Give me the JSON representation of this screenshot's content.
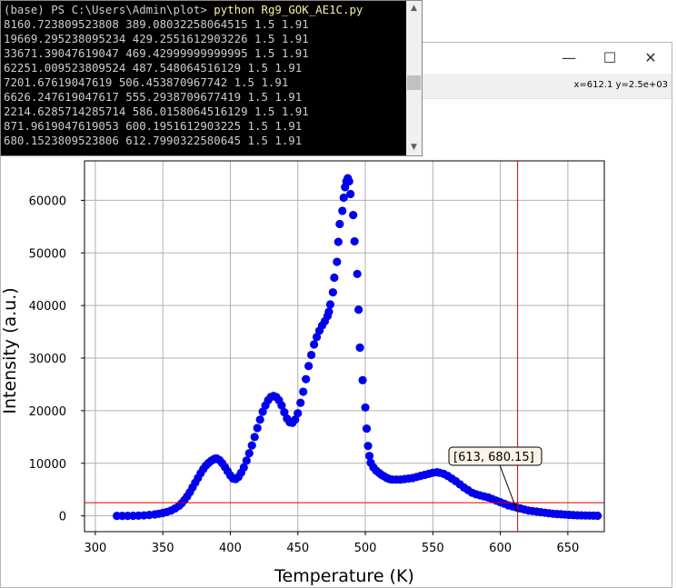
{
  "console": {
    "prompt": "(base) PS C:\\Users\\Admin\\plot> ",
    "command": "python Rg9_GOK_AE1C.py",
    "lines": [
      "8160.723809523808 389.08032258064515 1.5 1.91",
      "19669.295238095234 429.2551612903226 1.5 1.91",
      "33671.39047619047 469.42999999999995 1.5 1.91",
      "62251.009523809524 487.548064516129 1.5 1.91",
      "7201.67619047619 506.453870967742 1.5 1.91",
      "6626.247619047617 555.2938709677419 1.5 1.91",
      "2214.6285714285714 586.0158064516129 1.5 1.91",
      "871.9619047619053 600.1951612903225 1.5 1.91",
      "680.1523809523806 612.7990322580645 1.5 1.91"
    ],
    "scroll_up_icon": "chevron-up-icon",
    "scroll_down_icon": "chevron-down-icon"
  },
  "figure_window": {
    "minimize_glyph": "—",
    "maximize_glyph": "☐",
    "close_glyph": "✕",
    "coordinates": "x=612.1 y=2.5e+03"
  },
  "chart_data": {
    "type": "scatter",
    "xlabel": "Temperature (K)",
    "ylabel": "Intensity  (a.u.)",
    "xlim": [
      292,
      677
    ],
    "ylim": [
      -3000,
      67500
    ],
    "xticks": [
      300,
      350,
      400,
      450,
      500,
      550,
      600,
      650
    ],
    "yticks": [
      0,
      10000,
      20000,
      30000,
      40000,
      50000,
      60000
    ],
    "grid": true,
    "marker_color": "#0000ee",
    "cursor_color": "#dd0000",
    "cursor": {
      "x": 612.8,
      "y": 2500
    },
    "annotation": {
      "text": "[613, 680.15]",
      "x": 612.8,
      "y": 680.15
    },
    "points": [
      [
        316,
        0
      ],
      [
        320,
        0
      ],
      [
        324,
        0
      ],
      [
        328,
        20
      ],
      [
        332,
        50
      ],
      [
        336,
        100
      ],
      [
        340,
        180
      ],
      [
        344,
        280
      ],
      [
        347,
        400
      ],
      [
        350,
        550
      ],
      [
        353,
        750
      ],
      [
        356,
        1000
      ],
      [
        359,
        1400
      ],
      [
        362,
        1900
      ],
      [
        364,
        2400
      ],
      [
        366,
        3000
      ],
      [
        368,
        3700
      ],
      [
        370,
        4500
      ],
      [
        372,
        5400
      ],
      [
        374,
        6300
      ],
      [
        376,
        7200
      ],
      [
        378,
        8100
      ],
      [
        380,
        8900
      ],
      [
        382,
        9600
      ],
      [
        384,
        10100
      ],
      [
        386,
        10500
      ],
      [
        388,
        10800
      ],
      [
        389,
        10900
      ],
      [
        390,
        10900
      ],
      [
        392,
        10600
      ],
      [
        394,
        10000
      ],
      [
        396,
        9300
      ],
      [
        398,
        8500
      ],
      [
        400,
        7700
      ],
      [
        402,
        7100
      ],
      [
        404,
        7000
      ],
      [
        406,
        7400
      ],
      [
        408,
        8200
      ],
      [
        410,
        9200
      ],
      [
        412,
        10500
      ],
      [
        414,
        11900
      ],
      [
        416,
        13400
      ],
      [
        418,
        15000
      ],
      [
        420,
        16700
      ],
      [
        422,
        18300
      ],
      [
        424,
        19800
      ],
      [
        426,
        21000
      ],
      [
        428,
        22000
      ],
      [
        430,
        22600
      ],
      [
        432,
        22800
      ],
      [
        434,
        22600
      ],
      [
        436,
        22000
      ],
      [
        438,
        21000
      ],
      [
        440,
        19700
      ],
      [
        442,
        18500
      ],
      [
        444,
        17800
      ],
      [
        446,
        17700
      ],
      [
        448,
        18300
      ],
      [
        450,
        19500
      ],
      [
        452,
        21500
      ],
      [
        454,
        23600
      ],
      [
        456,
        26000
      ],
      [
        458,
        28500
      ],
      [
        460,
        30600
      ],
      [
        462,
        32600
      ],
      [
        464,
        34000
      ],
      [
        466,
        35200
      ],
      [
        468,
        36200
      ],
      [
        470,
        37000
      ],
      [
        472,
        38000
      ],
      [
        473,
        38800
      ],
      [
        474,
        40200
      ],
      [
        476,
        42500
      ],
      [
        477,
        45300
      ],
      [
        479,
        48300
      ],
      [
        480,
        52100
      ],
      [
        481,
        55500
      ],
      [
        483,
        58000
      ],
      [
        484,
        60500
      ],
      [
        485,
        62500
      ],
      [
        486,
        63600
      ],
      [
        487,
        64200
      ],
      [
        488,
        63600
      ],
      [
        489,
        61200
      ],
      [
        491,
        57200
      ],
      [
        492,
        52200
      ],
      [
        494,
        46000
      ],
      [
        495,
        39200
      ],
      [
        496,
        32000
      ],
      [
        498,
        25800
      ],
      [
        500,
        20600
      ],
      [
        501,
        16600
      ],
      [
        502,
        13300
      ],
      [
        503,
        11400
      ],
      [
        504,
        10100
      ],
      [
        506,
        9200
      ],
      [
        508,
        8600
      ],
      [
        510,
        8200
      ],
      [
        512,
        7800
      ],
      [
        514,
        7500
      ],
      [
        516,
        7200
      ],
      [
        518,
        7000
      ],
      [
        520,
        6900
      ],
      [
        523,
        6900
      ],
      [
        526,
        6900
      ],
      [
        529,
        7000
      ],
      [
        532,
        7100
      ],
      [
        535,
        7200
      ],
      [
        538,
        7400
      ],
      [
        541,
        7600
      ],
      [
        544,
        7800
      ],
      [
        547,
        8000
      ],
      [
        550,
        8200
      ],
      [
        553,
        8300
      ],
      [
        555,
        8200
      ],
      [
        558,
        8000
      ],
      [
        561,
        7600
      ],
      [
        564,
        7100
      ],
      [
        567,
        6600
      ],
      [
        570,
        6000
      ],
      [
        573,
        5400
      ],
      [
        576,
        4900
      ],
      [
        579,
        4400
      ],
      [
        582,
        4100
      ],
      [
        585,
        3900
      ],
      [
        588,
        3700
      ],
      [
        591,
        3500
      ],
      [
        594,
        3200
      ],
      [
        597,
        2900
      ],
      [
        600,
        2600
      ],
      [
        603,
        2300
      ],
      [
        606,
        2000
      ],
      [
        609,
        1800
      ],
      [
        612,
        1600
      ],
      [
        615,
        1400
      ],
      [
        618,
        1200
      ],
      [
        621,
        1000
      ],
      [
        624,
        900
      ],
      [
        627,
        800
      ],
      [
        630,
        700
      ],
      [
        633,
        600
      ],
      [
        636,
        500
      ],
      [
        639,
        400
      ],
      [
        642,
        350
      ],
      [
        645,
        300
      ],
      [
        648,
        250
      ],
      [
        651,
        200
      ],
      [
        654,
        150
      ],
      [
        657,
        120
      ],
      [
        660,
        100
      ],
      [
        663,
        80
      ],
      [
        666,
        60
      ],
      [
        669,
        40
      ],
      [
        672,
        30
      ]
    ]
  }
}
